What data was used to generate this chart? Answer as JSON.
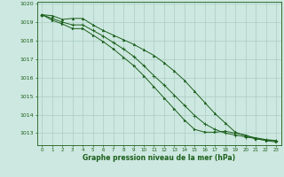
{
  "x": [
    0,
    1,
    2,
    3,
    4,
    5,
    6,
    7,
    8,
    9,
    10,
    11,
    12,
    13,
    14,
    15,
    16,
    17,
    18,
    19,
    20,
    21,
    22,
    23
  ],
  "line1": [
    1019.4,
    1019.35,
    1019.15,
    1019.2,
    1019.2,
    1018.85,
    1018.55,
    1018.3,
    1018.05,
    1017.8,
    1017.5,
    1017.2,
    1016.8,
    1016.35,
    1015.85,
    1015.25,
    1014.65,
    1014.05,
    1013.55,
    1013.05,
    1012.85,
    1012.75,
    1012.65,
    1012.6
  ],
  "line2": [
    1019.4,
    1019.2,
    1019.0,
    1018.85,
    1018.85,
    1018.55,
    1018.25,
    1017.9,
    1017.55,
    1017.15,
    1016.65,
    1016.1,
    1015.6,
    1015.05,
    1014.5,
    1013.95,
    1013.5,
    1013.2,
    1013.0,
    1012.9,
    1012.8,
    1012.7,
    1012.62,
    1012.58
  ],
  "line3": [
    1019.4,
    1019.1,
    1018.9,
    1018.65,
    1018.65,
    1018.3,
    1017.95,
    1017.55,
    1017.1,
    1016.65,
    1016.1,
    1015.5,
    1014.9,
    1014.3,
    1013.7,
    1013.2,
    1013.05,
    1013.05,
    1013.1,
    1013.0,
    1012.9,
    1012.7,
    1012.6,
    1012.52
  ],
  "bg_color": "#cde8e0",
  "line_color": "#1a5e1a",
  "grid_color": "#aaccc4",
  "xlabel": "Graphe pression niveau de la mer (hPa)",
  "ylabel_min": 1013,
  "ylabel_max": 1020,
  "xlim": [
    -0.5,
    23.5
  ],
  "ylim": [
    1012.35,
    1020.1
  ]
}
